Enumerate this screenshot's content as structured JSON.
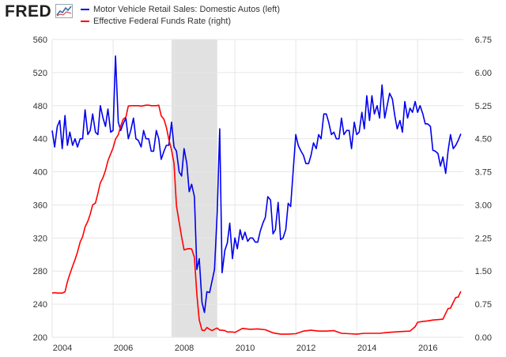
{
  "header": {
    "logo_text": "FRED",
    "logo_icon": "line-graph-icon"
  },
  "chart_data": {
    "type": "line",
    "title": "",
    "legend_placement": "top-left",
    "recession_shading": {
      "start": 2007.92,
      "end": 2009.42,
      "color": "#e1e1e1"
    },
    "grid": true,
    "x_ticks": [
      "2004",
      "2006",
      "2008",
      "2010",
      "2012",
      "2014",
      "2016"
    ],
    "x_tick_values": [
      2004,
      2006,
      2008,
      2010,
      2012,
      2014,
      2016
    ],
    "xlim": [
      2004,
      2017.5
    ],
    "left_axis": {
      "ylim": [
        200,
        560
      ],
      "ticks": [
        "200",
        "240",
        "280",
        "320",
        "360",
        "400",
        "440",
        "480",
        "520",
        "560"
      ],
      "tick_values": [
        200,
        240,
        280,
        320,
        360,
        400,
        440,
        480,
        520,
        560
      ]
    },
    "right_axis": {
      "ylim": [
        0,
        6.75
      ],
      "ticks": [
        "0.00",
        "0.75",
        "1.50",
        "2.25",
        "3.00",
        "3.75",
        "4.50",
        "5.25",
        "6.00",
        "6.75"
      ],
      "tick_values": [
        0,
        0.75,
        1.5,
        2.25,
        3.0,
        3.75,
        4.5,
        5.25,
        6.0,
        6.75
      ]
    },
    "series": [
      {
        "name": "Motor Vehicle Retail Sales: Domestic Autos (left)",
        "axis": "left",
        "color": "#0000ee",
        "x": [
          2004.0,
          2004.08,
          2004.17,
          2004.25,
          2004.33,
          2004.42,
          2004.5,
          2004.58,
          2004.67,
          2004.75,
          2004.83,
          2004.92,
          2005.0,
          2005.08,
          2005.17,
          2005.25,
          2005.33,
          2005.42,
          2005.5,
          2005.58,
          2005.67,
          2005.75,
          2005.83,
          2005.92,
          2006.0,
          2006.08,
          2006.17,
          2006.25,
          2006.33,
          2006.42,
          2006.5,
          2006.58,
          2006.67,
          2006.75,
          2006.83,
          2006.92,
          2007.0,
          2007.08,
          2007.17,
          2007.25,
          2007.33,
          2007.42,
          2007.5,
          2007.58,
          2007.67,
          2007.75,
          2007.83,
          2007.92,
          2008.0,
          2008.08,
          2008.17,
          2008.25,
          2008.33,
          2008.42,
          2008.5,
          2008.58,
          2008.67,
          2008.75,
          2008.83,
          2008.92,
          2009.0,
          2009.08,
          2009.17,
          2009.25,
          2009.33,
          2009.42,
          2009.5,
          2009.58,
          2009.67,
          2009.75,
          2009.83,
          2009.92,
          2010.0,
          2010.08,
          2010.17,
          2010.25,
          2010.33,
          2010.42,
          2010.5,
          2010.58,
          2010.67,
          2010.75,
          2010.83,
          2010.92,
          2011.0,
          2011.08,
          2011.17,
          2011.25,
          2011.33,
          2011.42,
          2011.5,
          2011.58,
          2011.67,
          2011.75,
          2011.83,
          2011.92,
          2012.0,
          2012.08,
          2012.17,
          2012.25,
          2012.33,
          2012.42,
          2012.5,
          2012.58,
          2012.67,
          2012.75,
          2012.83,
          2012.92,
          2013.0,
          2013.08,
          2013.17,
          2013.25,
          2013.33,
          2013.42,
          2013.5,
          2013.58,
          2013.67,
          2013.75,
          2013.83,
          2013.92,
          2014.0,
          2014.08,
          2014.17,
          2014.25,
          2014.33,
          2014.42,
          2014.5,
          2014.58,
          2014.67,
          2014.75,
          2014.83,
          2014.92,
          2015.0,
          2015.08,
          2015.17,
          2015.25,
          2015.33,
          2015.42,
          2015.5,
          2015.58,
          2015.67,
          2015.75,
          2015.83,
          2015.92,
          2016.0,
          2016.08,
          2016.17,
          2016.25,
          2016.33,
          2016.42,
          2016.5,
          2016.58,
          2016.67,
          2016.75,
          2016.83,
          2016.92,
          2017.0,
          2017.08,
          2017.17,
          2017.25,
          2017.33,
          2017.42
        ],
        "values": [
          450,
          430,
          455,
          462,
          428,
          468,
          432,
          448,
          432,
          440,
          430,
          440,
          440,
          475,
          445,
          450,
          470,
          448,
          445,
          480,
          465,
          455,
          476,
          448,
          450,
          540,
          460,
          450,
          458,
          465,
          440,
          450,
          465,
          440,
          438,
          430,
          450,
          440,
          440,
          425,
          425,
          450,
          440,
          415,
          425,
          432,
          432,
          460,
          430,
          425,
          400,
          395,
          428,
          410,
          376,
          385,
          370,
          282,
          295,
          242,
          230,
          255,
          254,
          268,
          282,
          352,
          452,
          278,
          305,
          314,
          338,
          295,
          320,
          307,
          330,
          318,
          327,
          316,
          320,
          320,
          315,
          315,
          328,
          338,
          345,
          370,
          366,
          325,
          330,
          363,
          318,
          320,
          330,
          362,
          358,
          405,
          445,
          432,
          425,
          420,
          410,
          410,
          420,
          435,
          428,
          445,
          440,
          470,
          470,
          460,
          445,
          448,
          440,
          440,
          465,
          445,
          450,
          450,
          428,
          460,
          445,
          448,
          472,
          452,
          492,
          462,
          492,
          470,
          480,
          465,
          505,
          465,
          480,
          495,
          488,
          468,
          452,
          462,
          448,
          485,
          465,
          477,
          472,
          485,
          472,
          480,
          470,
          458,
          458,
          455,
          426,
          425,
          422,
          407,
          418,
          398,
          425,
          445,
          428,
          432,
          438,
          446
        ]
      },
      {
        "name": "Effective Federal Funds Rate (right)",
        "axis": "right",
        "color": "#ff0000",
        "x": [
          2004.0,
          2004.08,
          2004.17,
          2004.25,
          2004.33,
          2004.42,
          2004.5,
          2004.58,
          2004.67,
          2004.75,
          2004.83,
          2004.92,
          2005.0,
          2005.08,
          2005.17,
          2005.25,
          2005.33,
          2005.42,
          2005.5,
          2005.58,
          2005.67,
          2005.75,
          2005.83,
          2005.92,
          2006.0,
          2006.08,
          2006.17,
          2006.25,
          2006.33,
          2006.42,
          2006.5,
          2006.58,
          2006.67,
          2006.75,
          2006.83,
          2006.92,
          2007.0,
          2007.08,
          2007.17,
          2007.25,
          2007.33,
          2007.42,
          2007.5,
          2007.58,
          2007.67,
          2007.75,
          2007.83,
          2007.92,
          2008.0,
          2008.08,
          2008.17,
          2008.25,
          2008.33,
          2008.42,
          2008.5,
          2008.58,
          2008.67,
          2008.75,
          2008.83,
          2008.92,
          2009.0,
          2009.08,
          2009.17,
          2009.25,
          2009.33,
          2009.42,
          2009.5,
          2009.58,
          2009.67,
          2009.75,
          2009.83,
          2009.92,
          2010.0,
          2010.25,
          2010.5,
          2010.75,
          2011.0,
          2011.25,
          2011.5,
          2011.75,
          2012.0,
          2012.25,
          2012.5,
          2012.75,
          2013.0,
          2013.25,
          2013.5,
          2013.75,
          2014.0,
          2014.25,
          2014.5,
          2014.75,
          2015.0,
          2015.25,
          2015.5,
          2015.75,
          2015.92,
          2016.0,
          2016.17,
          2016.33,
          2016.5,
          2016.67,
          2016.83,
          2016.92,
          2017.0,
          2017.08,
          2017.17,
          2017.25,
          2017.33,
          2017.42
        ],
        "values": [
          1.0,
          1.01,
          1.0,
          1.0,
          1.0,
          1.03,
          1.26,
          1.43,
          1.61,
          1.76,
          1.93,
          2.16,
          2.28,
          2.5,
          2.63,
          2.79,
          3.0,
          3.04,
          3.26,
          3.5,
          3.62,
          3.78,
          4.0,
          4.16,
          4.29,
          4.49,
          4.59,
          4.79,
          4.94,
          4.99,
          5.24,
          5.25,
          5.25,
          5.25,
          5.25,
          5.24,
          5.25,
          5.26,
          5.26,
          5.25,
          5.25,
          5.25,
          5.26,
          5.02,
          4.94,
          4.76,
          4.49,
          4.24,
          3.94,
          2.98,
          2.61,
          2.28,
          1.98,
          2.0,
          2.01,
          2.0,
          1.81,
          0.97,
          0.39,
          0.16,
          0.15,
          0.22,
          0.18,
          0.15,
          0.18,
          0.21,
          0.16,
          0.16,
          0.15,
          0.12,
          0.12,
          0.12,
          0.11,
          0.2,
          0.18,
          0.19,
          0.17,
          0.1,
          0.07,
          0.07,
          0.08,
          0.14,
          0.16,
          0.14,
          0.14,
          0.15,
          0.09,
          0.08,
          0.07,
          0.09,
          0.09,
          0.09,
          0.11,
          0.12,
          0.13,
          0.14,
          0.24,
          0.34,
          0.36,
          0.37,
          0.39,
          0.4,
          0.41,
          0.54,
          0.65,
          0.66,
          0.79,
          0.9,
          0.91,
          1.04
        ]
      }
    ]
  }
}
